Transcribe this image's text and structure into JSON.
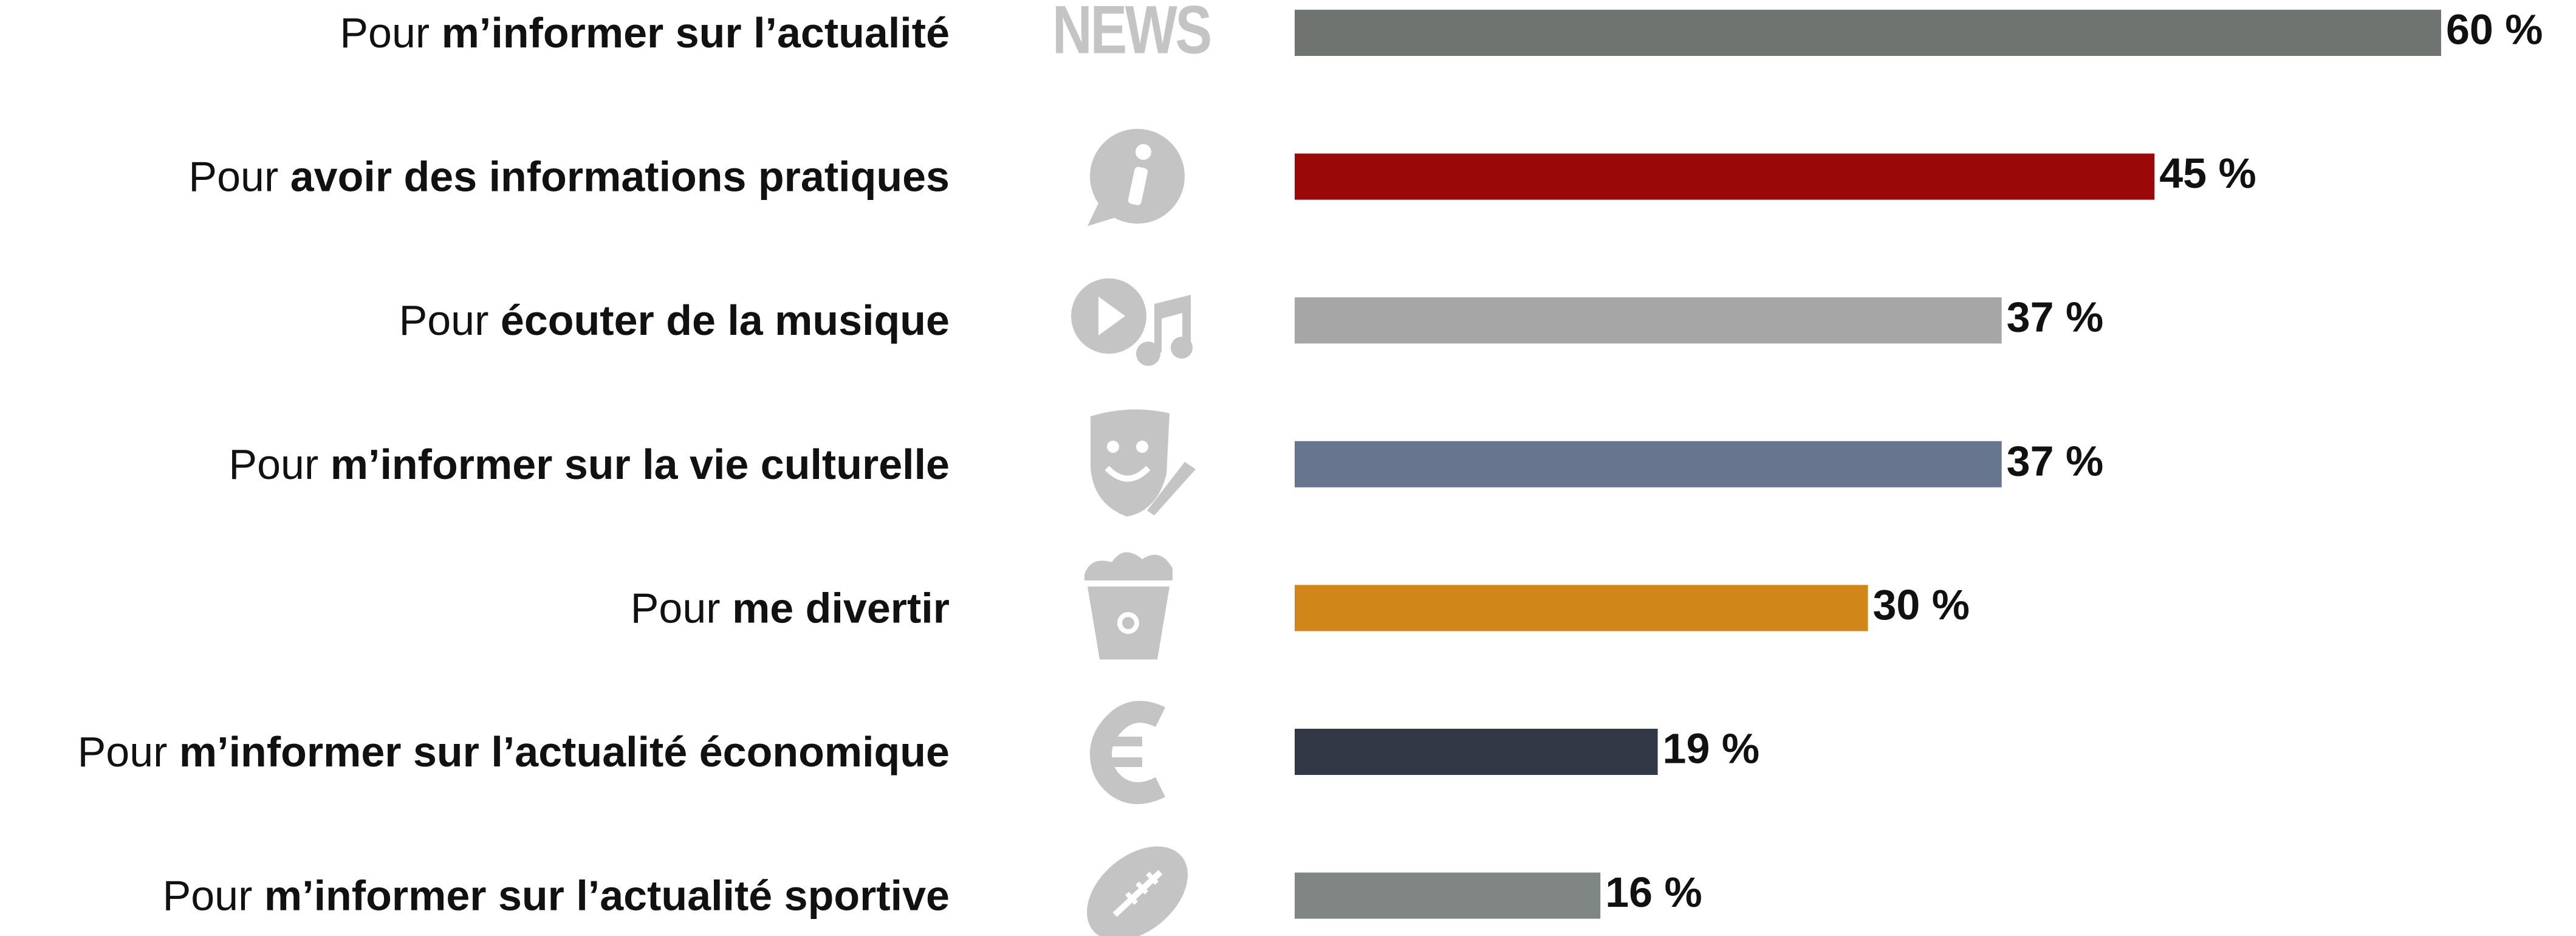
{
  "chart_data": {
    "type": "bar",
    "orientation": "horizontal",
    "categories": [
      {
        "lead": "Pour",
        "emphasis": "m’informer sur l’actualité"
      },
      {
        "lead": "Pour",
        "emphasis": "avoir des informations pratiques"
      },
      {
        "lead": "Pour",
        "emphasis": "écouter de la musique"
      },
      {
        "lead": "Pour",
        "emphasis": "m’informer sur la vie culturelle"
      },
      {
        "lead": "Pour",
        "emphasis": "me divertir"
      },
      {
        "lead": "Pour",
        "emphasis": "m’informer sur l’actualité économique"
      },
      {
        "lead": "Pour",
        "emphasis": "m’informer sur l’actualité sportive"
      }
    ],
    "values": [
      60,
      45,
      37,
      37,
      30,
      19,
      16
    ],
    "value_labels": [
      "60 %",
      "45 %",
      "37 %",
      "37 %",
      "30 %",
      "19 %",
      "16 %"
    ],
    "colors": [
      "#6f7471",
      "#9a0808",
      "#a6a6a6",
      "#67758f",
      "#d08618",
      "#323745",
      "#808683"
    ],
    "xlim": [
      0,
      60
    ],
    "icon_text": "NEWS"
  }
}
